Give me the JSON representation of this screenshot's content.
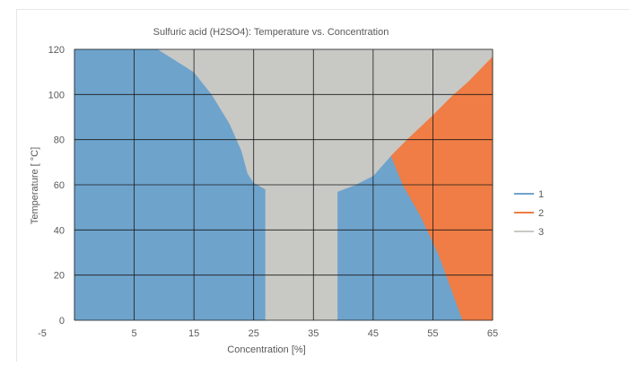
{
  "chart_data": {
    "type": "area",
    "title": "Sulfuric acid (H2SO4):   Temperature vs. Concentration",
    "xlabel": "Concentration [%]",
    "ylabel": "Temperature [  °C]",
    "xlim": [
      -5,
      65
    ],
    "ylim": [
      0,
      120
    ],
    "xticks": [
      -5,
      5,
      15,
      25,
      35,
      45,
      55,
      65
    ],
    "yticks": [
      0,
      20,
      40,
      60,
      80,
      100,
      120
    ],
    "grid": true,
    "legend_position": "right",
    "series": [
      {
        "name": "1",
        "color": "#6ea3cc",
        "regions": [
          [
            [
              -5,
              0
            ],
            [
              -5,
              120
            ],
            [
              9,
              120
            ],
            [
              12,
              115
            ],
            [
              15,
              110
            ],
            [
              18,
              100
            ],
            [
              21,
              87
            ],
            [
              23,
              75
            ],
            [
              24,
              65
            ],
            [
              25,
              61
            ],
            [
              27,
              58
            ],
            [
              27,
              0
            ]
          ],
          [
            [
              39,
              0
            ],
            [
              39,
              57
            ],
            [
              42,
              60
            ],
            [
              45,
              64
            ],
            [
              47,
              70
            ],
            [
              48,
              73
            ],
            [
              50,
              60
            ],
            [
              53,
              46
            ],
            [
              56,
              29
            ],
            [
              60,
              0
            ]
          ]
        ]
      },
      {
        "name": "2",
        "color": "#ef7d45",
        "regions": [
          [
            [
              48,
              73
            ],
            [
              51,
              81
            ],
            [
              55,
              91
            ],
            [
              58,
              99
            ],
            [
              61,
              106
            ],
            [
              65,
              117
            ],
            [
              65,
              0
            ],
            [
              60,
              0
            ],
            [
              56,
              29
            ],
            [
              53,
              46
            ],
            [
              50,
              60
            ]
          ]
        ]
      },
      {
        "name": "3",
        "color": "#c8c8c4",
        "regions": [
          [
            [
              9,
              120
            ],
            [
              65,
              120
            ],
            [
              65,
              117
            ],
            [
              61,
              106
            ],
            [
              58,
              99
            ],
            [
              55,
              91
            ],
            [
              51,
              81
            ],
            [
              48,
              73
            ],
            [
              47,
              70
            ],
            [
              45,
              64
            ],
            [
              42,
              60
            ],
            [
              39,
              57
            ],
            [
              39,
              0
            ],
            [
              27,
              0
            ],
            [
              27,
              58
            ],
            [
              25,
              61
            ],
            [
              24,
              65
            ],
            [
              23,
              75
            ],
            [
              21,
              87
            ],
            [
              18,
              100
            ],
            [
              15,
              110
            ],
            [
              12,
              115
            ]
          ]
        ]
      }
    ]
  }
}
